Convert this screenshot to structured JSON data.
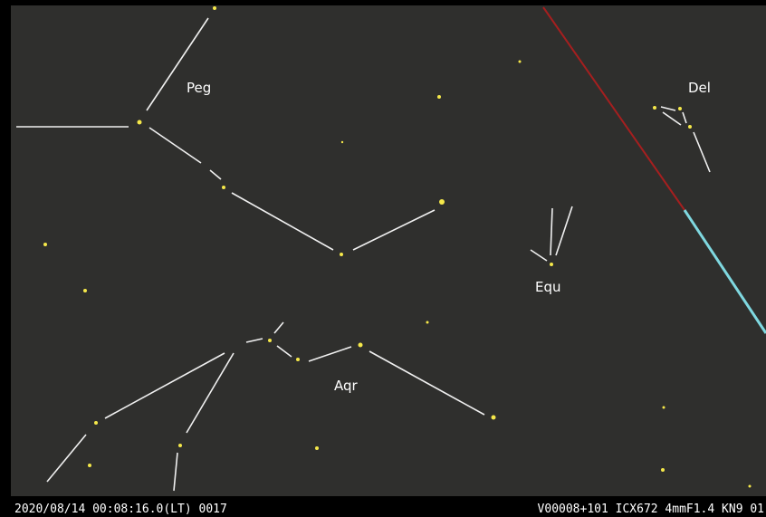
{
  "labels": [
    "Peg",
    "Del",
    "Equ",
    "Aqr"
  ],
  "footer": {
    "timestamp": "2020/08/14 00:08:16.0(LT) 0017",
    "camera": "V00008+101 ICX672 4mmF1.4 KN9 01"
  }
}
